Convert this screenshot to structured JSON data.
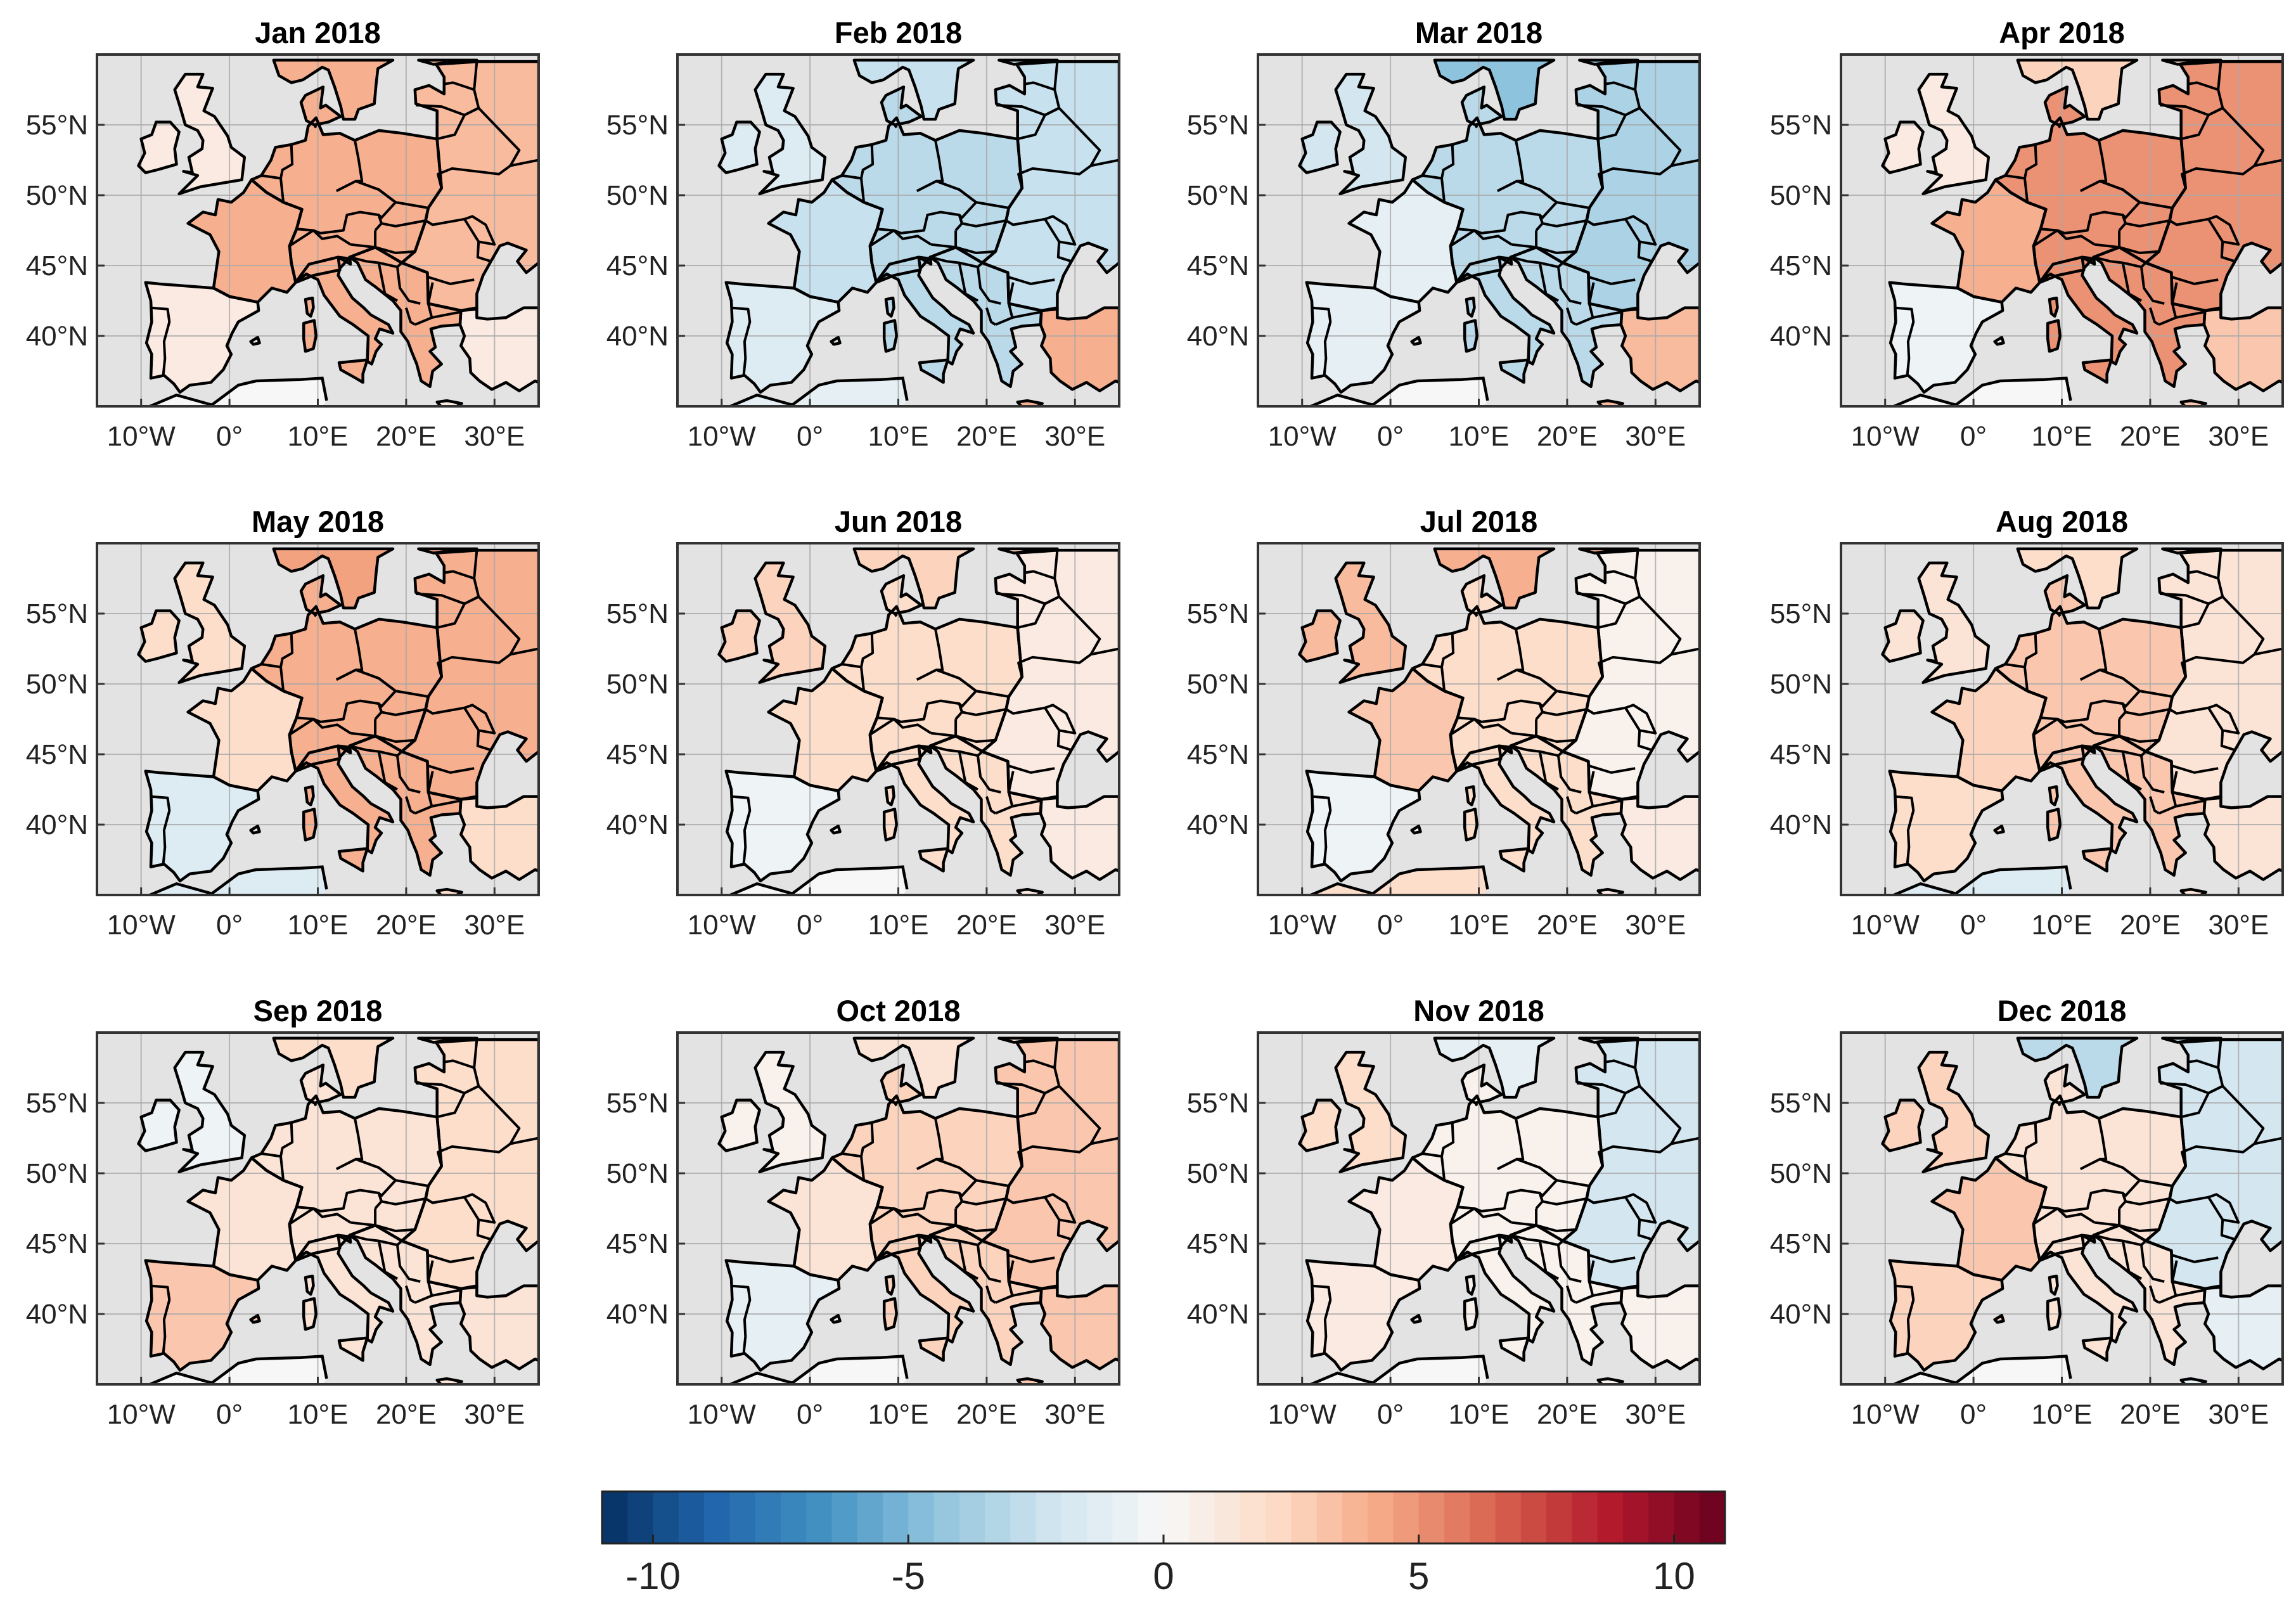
{
  "figure": {
    "title_prefix": "",
    "tick_labels_lon": [
      "10°W",
      "0°",
      "10°E",
      "20°E",
      "30°E"
    ],
    "tick_labels_lat": [
      "55°N",
      "50°N",
      "45°N",
      "40°N"
    ],
    "lon_ticks": [
      -10,
      0,
      10,
      20,
      30
    ],
    "lat_ticks": [
      55,
      50,
      45,
      40
    ],
    "lon_range": [
      -15,
      35
    ],
    "lat_range": [
      35,
      60
    ]
  },
  "panels": [
    {
      "title": "Jan 2018",
      "anomaly": {
        "iberia": 1.0,
        "france": 4.0,
        "central": 4.0,
        "east": 3.5,
        "scandinavia": 4.0,
        "uk": 1.0,
        "turkey": 1.0,
        "south_sea": 0
      }
    },
    {
      "title": "Feb 2018",
      "anomaly": {
        "iberia": -1.5,
        "france": -2.5,
        "central": -3.0,
        "east": -2.5,
        "scandinavia": -2.5,
        "uk": -1.5,
        "turkey": 4.0,
        "south_sea": -1.0
      }
    },
    {
      "title": "Mar 2018",
      "anomaly": {
        "iberia": -1.0,
        "france": -1.0,
        "central": -3.0,
        "east": -3.5,
        "scandinavia": -4.5,
        "uk": -2.0,
        "turkey": 3.5,
        "south_sea": 0
      }
    },
    {
      "title": "Apr 2018",
      "anomaly": {
        "iberia": -0.5,
        "france": 4.0,
        "central": 5.0,
        "east": 5.0,
        "scandinavia": 2.5,
        "uk": 1.0,
        "turkey": 3.0,
        "south_sea": 0
      }
    },
    {
      "title": "May 2018",
      "anomaly": {
        "iberia": -1.5,
        "france": 2.0,
        "central": 4.0,
        "east": 4.0,
        "scandinavia": 4.5,
        "uk": 2.0,
        "turkey": 2.0,
        "south_sea": -1.5
      }
    },
    {
      "title": "Jun 2018",
      "anomaly": {
        "iberia": -0.5,
        "france": 2.0,
        "central": 2.0,
        "east": 1.0,
        "scandinavia": 2.5,
        "uk": 2.5,
        "turkey": 1.0,
        "south_sea": 0
      }
    },
    {
      "title": "Jul 2018",
      "anomaly": {
        "iberia": -0.5,
        "france": 3.0,
        "central": 2.0,
        "east": 0.5,
        "scandinavia": 4.0,
        "uk": 3.5,
        "turkey": 1.0,
        "south_sea": 2.0
      }
    },
    {
      "title": "Aug 2018",
      "anomaly": {
        "iberia": 2.0,
        "france": 2.5,
        "central": 3.0,
        "east": 1.5,
        "scandinavia": 2.0,
        "uk": 1.5,
        "turkey": 1.5,
        "south_sea": -1.5
      }
    },
    {
      "title": "Sep 2018",
      "anomaly": {
        "iberia": 3.0,
        "france": 1.5,
        "central": 1.5,
        "east": 2.0,
        "scandinavia": 2.0,
        "uk": -0.5,
        "turkey": 1.5,
        "south_sea": 0
      }
    },
    {
      "title": "Oct 2018",
      "anomaly": {
        "iberia": -1.0,
        "france": 1.5,
        "central": 2.5,
        "east": 3.0,
        "scandinavia": 1.5,
        "uk": 0.5,
        "turkey": 3.0,
        "south_sea": 0
      }
    },
    {
      "title": "Nov 2018",
      "anomaly": {
        "iberia": 1.0,
        "france": 1.0,
        "central": 0.5,
        "east": -2.0,
        "scandinavia": -1.0,
        "uk": 2.0,
        "turkey": 0.5,
        "south_sea": 0
      }
    },
    {
      "title": "Dec 2018",
      "anomaly": {
        "iberia": 2.5,
        "france": 3.0,
        "central": 1.5,
        "east": -2.0,
        "scandinavia": -3.0,
        "uk": 2.5,
        "turkey": -1.0,
        "south_sea": 0
      }
    }
  ],
  "colorbar": {
    "min": -11,
    "max": 11,
    "ticks": [
      -10,
      -5,
      0,
      5,
      10
    ],
    "tick_labels": [
      "-10",
      "-5",
      "0",
      "5",
      "10"
    ],
    "colormap": "RdBu_r",
    "stops": [
      "#053061",
      "#2166ac",
      "#4393c3",
      "#92c5de",
      "#d1e5f0",
      "#f7f7f7",
      "#fddbc7",
      "#f4a582",
      "#d6604d",
      "#b2182b",
      "#67001f"
    ]
  },
  "colors": {
    "sea": "#e3e3e3",
    "grid": "#a7a7a7",
    "coast": "#000000",
    "frame": "#333333"
  }
}
